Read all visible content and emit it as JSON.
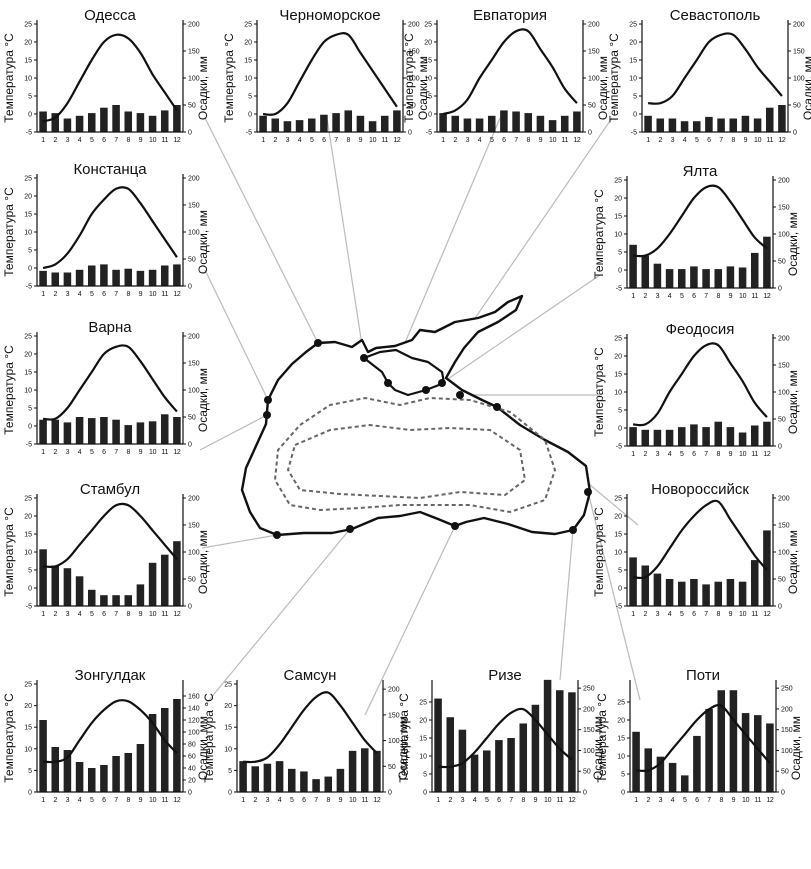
{
  "axis_labels": {
    "temperature": "Температура °C",
    "precipitation": "Осадки, мм"
  },
  "months": [
    "1",
    "2",
    "3",
    "4",
    "5",
    "6",
    "7",
    "8",
    "9",
    "10",
    "11",
    "12"
  ],
  "colors": {
    "bars": "#222222",
    "curve": "#111111",
    "coast": "#111111",
    "leader": "#bbbbbb"
  },
  "chart_data": [
    {
      "type": "bar",
      "title": "Одесса",
      "temp_ticks": [
        -5,
        0,
        5,
        10,
        15,
        20,
        25
      ],
      "prec_ticks": [
        0,
        50,
        100,
        150,
        200
      ],
      "ylim_temp": [
        -5,
        25
      ],
      "ylim_prec": [
        0,
        200
      ],
      "temperature": [
        -2,
        -1,
        3,
        9,
        15,
        20,
        22,
        21,
        17,
        11,
        6,
        1
      ],
      "precipitation": [
        38,
        35,
        25,
        30,
        35,
        45,
        50,
        38,
        35,
        30,
        40,
        50
      ]
    },
    {
      "type": "bar",
      "title": "Черноморское",
      "temp_ticks": [
        -5,
        0,
        5,
        10,
        15,
        20,
        25
      ],
      "prec_ticks": [
        0,
        50,
        100,
        150,
        200
      ],
      "ylim_temp": [
        -5,
        25
      ],
      "ylim_prec": [
        0,
        200
      ],
      "temperature": [
        0,
        0,
        3,
        9,
        15,
        20,
        22,
        22,
        17,
        12,
        7,
        2
      ],
      "precipitation": [
        30,
        25,
        20,
        22,
        25,
        32,
        35,
        40,
        30,
        20,
        30,
        40
      ]
    },
    {
      "type": "bar",
      "title": "Евпатория",
      "temp_ticks": [
        -5,
        0,
        5,
        10,
        15,
        20,
        25
      ],
      "prec_ticks": [
        0,
        50,
        100,
        150,
        200
      ],
      "ylim_temp": [
        -5,
        25
      ],
      "ylim_prec": [
        0,
        200
      ],
      "temperature": [
        0,
        1,
        4,
        10,
        15,
        20,
        23,
        23,
        18,
        13,
        7,
        3
      ],
      "precipitation": [
        35,
        30,
        25,
        25,
        30,
        40,
        38,
        35,
        30,
        22,
        30,
        38
      ]
    },
    {
      "type": "bar",
      "title": "Севастополь",
      "temp_ticks": [
        -5,
        0,
        5,
        10,
        15,
        20,
        25
      ],
      "prec_ticks": [
        0,
        50,
        100,
        150,
        200
      ],
      "ylim_temp": [
        -5,
        25
      ],
      "ylim_prec": [
        0,
        200
      ],
      "temperature": [
        3,
        3,
        5,
        10,
        15,
        20,
        22,
        22,
        18,
        13,
        9,
        5
      ],
      "precipitation": [
        30,
        25,
        25,
        20,
        20,
        28,
        25,
        25,
        30,
        25,
        45,
        50
      ]
    },
    {
      "type": "bar",
      "title": "Констанца",
      "temp_ticks": [
        -5,
        0,
        5,
        10,
        15,
        20,
        25
      ],
      "prec_ticks": [
        0,
        50,
        100,
        150,
        200
      ],
      "ylim_temp": [
        -5,
        25
      ],
      "ylim_prec": [
        0,
        200
      ],
      "temperature": [
        0,
        1,
        4,
        9,
        15,
        19,
        22,
        22,
        18,
        13,
        8,
        3
      ],
      "precipitation": [
        28,
        25,
        25,
        30,
        38,
        40,
        30,
        32,
        28,
        30,
        38,
        40
      ]
    },
    {
      "type": "bar",
      "title": "Ялта",
      "temp_ticks": [
        -5,
        0,
        5,
        10,
        15,
        20,
        25
      ],
      "prec_ticks": [
        0,
        50,
        100,
        150,
        200
      ],
      "ylim_temp": [
        -5,
        25
      ],
      "ylim_prec": [
        0,
        200
      ],
      "temperature": [
        4,
        4,
        6,
        10,
        15,
        20,
        23,
        23,
        19,
        14,
        9,
        6
      ],
      "precipitation": [
        80,
        60,
        45,
        35,
        35,
        40,
        35,
        35,
        40,
        38,
        65,
        95
      ]
    },
    {
      "type": "bar",
      "title": "Варна",
      "temp_ticks": [
        -5,
        0,
        5,
        10,
        15,
        20,
        25
      ],
      "prec_ticks": [
        0,
        50,
        100,
        150,
        200
      ],
      "ylim_temp": [
        -5,
        25
      ],
      "ylim_prec": [
        0,
        200
      ],
      "temperature": [
        2,
        2,
        5,
        10,
        15,
        20,
        22,
        22,
        18,
        13,
        8,
        4
      ],
      "precipitation": [
        45,
        45,
        40,
        50,
        48,
        50,
        45,
        35,
        40,
        42,
        55,
        50
      ]
    },
    {
      "type": "bar",
      "title": "Феодосия",
      "temp_ticks": [
        -5,
        0,
        5,
        10,
        15,
        20,
        25
      ],
      "prec_ticks": [
        0,
        50,
        100,
        150,
        200
      ],
      "ylim_temp": [
        -5,
        25
      ],
      "ylim_prec": [
        0,
        200
      ],
      "temperature": [
        1,
        1,
        4,
        10,
        15,
        20,
        23,
        23,
        18,
        13,
        7,
        3
      ],
      "precipitation": [
        35,
        30,
        30,
        30,
        35,
        40,
        35,
        45,
        35,
        25,
        38,
        45
      ]
    },
    {
      "type": "bar",
      "title": "Стамбул",
      "temp_ticks": [
        -5,
        0,
        5,
        10,
        15,
        20,
        25
      ],
      "prec_ticks": [
        0,
        50,
        100,
        150,
        200
      ],
      "ylim_temp": [
        -5,
        25
      ],
      "ylim_prec": [
        0,
        200
      ],
      "temperature": [
        6,
        6,
        8,
        12,
        16,
        20,
        23,
        23,
        20,
        16,
        12,
        8
      ],
      "precipitation": [
        105,
        75,
        70,
        55,
        30,
        20,
        20,
        20,
        40,
        80,
        95,
        120
      ]
    },
    {
      "type": "bar",
      "title": "Новороссийск",
      "temp_ticks": [
        -5,
        0,
        5,
        10,
        15,
        20,
        25
      ],
      "prec_ticks": [
        0,
        50,
        100,
        150,
        200
      ],
      "ylim_temp": [
        -5,
        25
      ],
      "ylim_prec": [
        0,
        200
      ],
      "temperature": [
        3,
        3,
        6,
        11,
        16,
        20,
        23,
        24,
        19,
        14,
        9,
        5
      ],
      "precipitation": [
        90,
        75,
        60,
        50,
        45,
        50,
        40,
        45,
        50,
        45,
        85,
        140
      ]
    },
    {
      "type": "bar",
      "title": "Зонгулдак",
      "temp_ticks": [
        0,
        5,
        10,
        15,
        20,
        25
      ],
      "prec_ticks": [
        0,
        20,
        40,
        60,
        80,
        100,
        120,
        140,
        160
      ],
      "ylim_temp": [
        0,
        25
      ],
      "ylim_prec": [
        0,
        180
      ],
      "temperature": [
        7,
        7,
        8,
        12,
        16,
        19,
        21,
        21,
        19,
        16,
        12,
        9
      ],
      "precipitation": [
        120,
        75,
        70,
        50,
        40,
        45,
        60,
        65,
        80,
        130,
        140,
        155
      ]
    },
    {
      "type": "bar",
      "title": "Самсун",
      "temp_ticks": [
        0,
        5,
        10,
        15,
        20,
        25
      ],
      "prec_ticks": [
        0,
        50,
        100,
        150,
        200
      ],
      "ylim_temp": [
        0,
        25
      ],
      "ylim_prec": [
        0,
        210
      ],
      "temperature": [
        7,
        7,
        8,
        11,
        15,
        19,
        22,
        23,
        20,
        16,
        12,
        9
      ],
      "precipitation": [
        60,
        50,
        55,
        60,
        45,
        40,
        25,
        30,
        45,
        80,
        85,
        80
      ]
    },
    {
      "type": "bar",
      "title": "Ризе",
      "temp_ticks": [
        0,
        5,
        10,
        15,
        20,
        25
      ],
      "prec_ticks": [
        0,
        50,
        100,
        150,
        200,
        250
      ],
      "ylim_temp": [
        0,
        30
      ],
      "ylim_prec": [
        0,
        260
      ],
      "temperature": [
        7,
        7,
        8,
        11,
        15,
        19,
        22,
        23,
        20,
        16,
        12,
        9
      ],
      "precipitation": [
        225,
        180,
        150,
        90,
        100,
        125,
        130,
        165,
        210,
        270,
        245,
        240
      ]
    },
    {
      "type": "bar",
      "title": "Поти",
      "temp_ticks": [
        0,
        5,
        10,
        15,
        20,
        25
      ],
      "prec_ticks": [
        0,
        50,
        100,
        150,
        200,
        250
      ],
      "ylim_temp": [
        0,
        30
      ],
      "ylim_prec": [
        0,
        260
      ],
      "temperature": [
        6,
        6,
        8,
        12,
        16,
        20,
        23,
        24,
        20,
        16,
        12,
        8
      ],
      "precipitation": [
        145,
        105,
        85,
        70,
        40,
        135,
        200,
        245,
        245,
        190,
        185,
        165
      ]
    }
  ]
}
